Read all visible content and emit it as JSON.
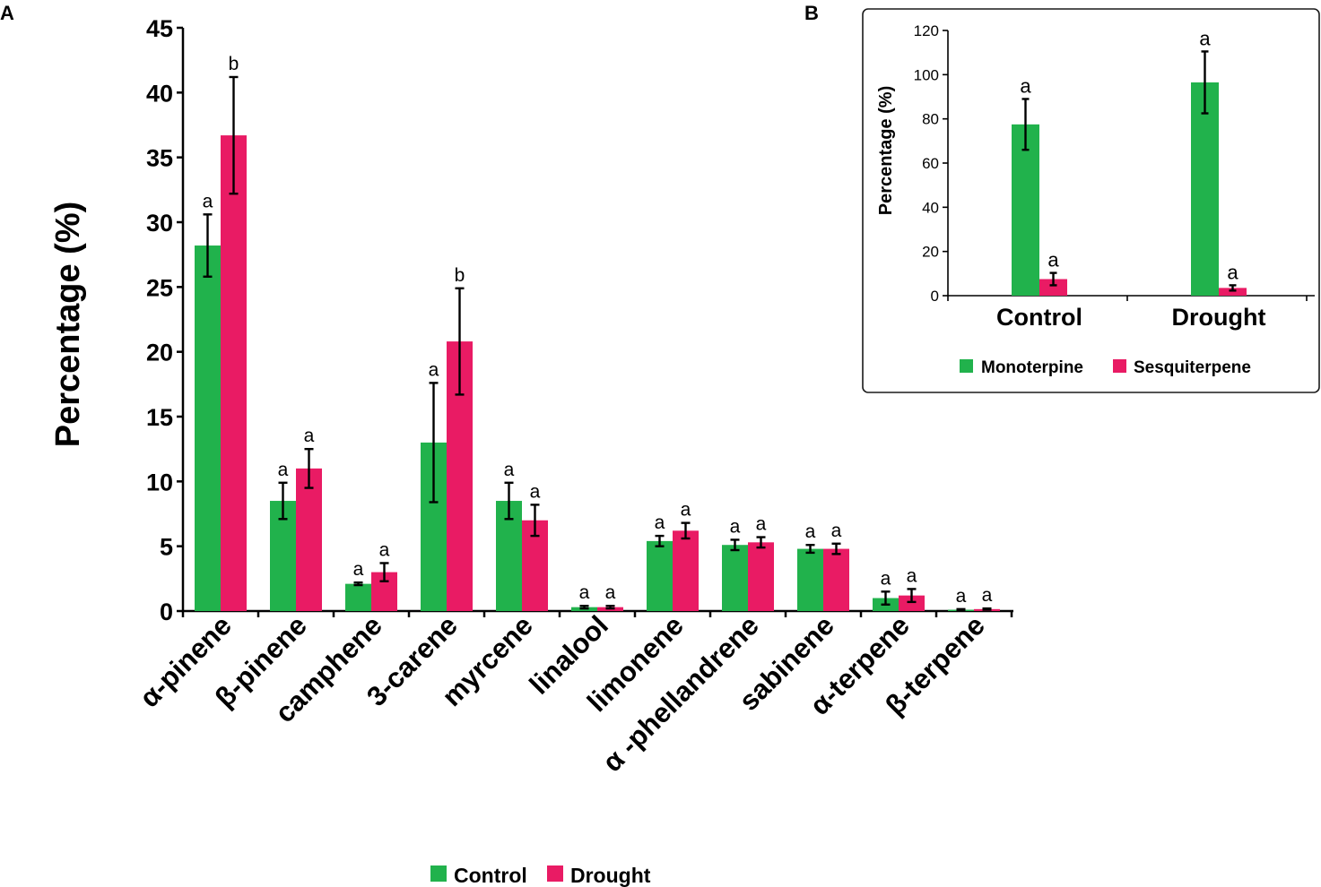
{
  "colors": {
    "control": "#21b24c",
    "drought": "#e91b64"
  },
  "chart_data": [
    {
      "panel": "A",
      "type": "bar",
      "title": "",
      "xlabel": "",
      "ylabel": "Percentage (%)",
      "ylim": [
        0,
        45
      ],
      "yticks": [
        "0",
        "5",
        "10",
        "15",
        "20",
        "25",
        "30",
        "35",
        "40",
        "45"
      ],
      "categories": [
        "α-pinene",
        "β-pinene",
        "camphene",
        "3-carene",
        "myrcene",
        "linalool",
        "limonene",
        "α -phellandrene",
        "sabinene",
        "α-terpene",
        "β-terpene"
      ],
      "series": [
        {
          "name": "Control",
          "values": [
            28.2,
            8.5,
            2.1,
            13.0,
            8.5,
            0.3,
            5.4,
            5.1,
            4.8,
            1.0,
            0.1
          ],
          "errors": [
            2.4,
            1.4,
            0.1,
            4.6,
            1.4,
            0.1,
            0.4,
            0.4,
            0.3,
            0.5,
            0.05
          ],
          "letters": [
            "a",
            "a",
            "a",
            "a",
            "a",
            "a",
            "a",
            "a",
            "a",
            "a",
            "a"
          ]
        },
        {
          "name": "Drought",
          "values": [
            36.7,
            11.0,
            3.0,
            20.8,
            7.0,
            0.3,
            6.2,
            5.3,
            4.8,
            1.2,
            0.15
          ],
          "errors": [
            4.5,
            1.5,
            0.7,
            4.1,
            1.2,
            0.1,
            0.6,
            0.4,
            0.4,
            0.5,
            0.05
          ],
          "letters": [
            "b",
            "a",
            "a",
            "b",
            "a",
            "a",
            "a",
            "a",
            "a",
            "a",
            "a"
          ]
        }
      ],
      "legend": [
        "Control",
        "Drought"
      ],
      "legend_position": "bottom"
    },
    {
      "panel": "B",
      "type": "bar",
      "title": "",
      "xlabel": "",
      "ylabel": "Percentage (%)",
      "ylim": [
        0,
        120
      ],
      "yticks": [
        "0",
        "20",
        "40",
        "60",
        "80",
        "100",
        "120"
      ],
      "categories": [
        "Control",
        "Drought"
      ],
      "series": [
        {
          "name": "Monoterpine",
          "values": [
            77.5,
            96.5
          ],
          "errors": [
            11.5,
            14.0
          ],
          "letters": [
            "a",
            "a"
          ]
        },
        {
          "name": "Sesquiterpene",
          "values": [
            7.5,
            3.5
          ],
          "errors": [
            2.8,
            1.2
          ],
          "letters": [
            "a",
            "a"
          ]
        }
      ],
      "legend": [
        "Monoterpine",
        "Sesquiterpene"
      ],
      "legend_position": "bottom"
    }
  ]
}
